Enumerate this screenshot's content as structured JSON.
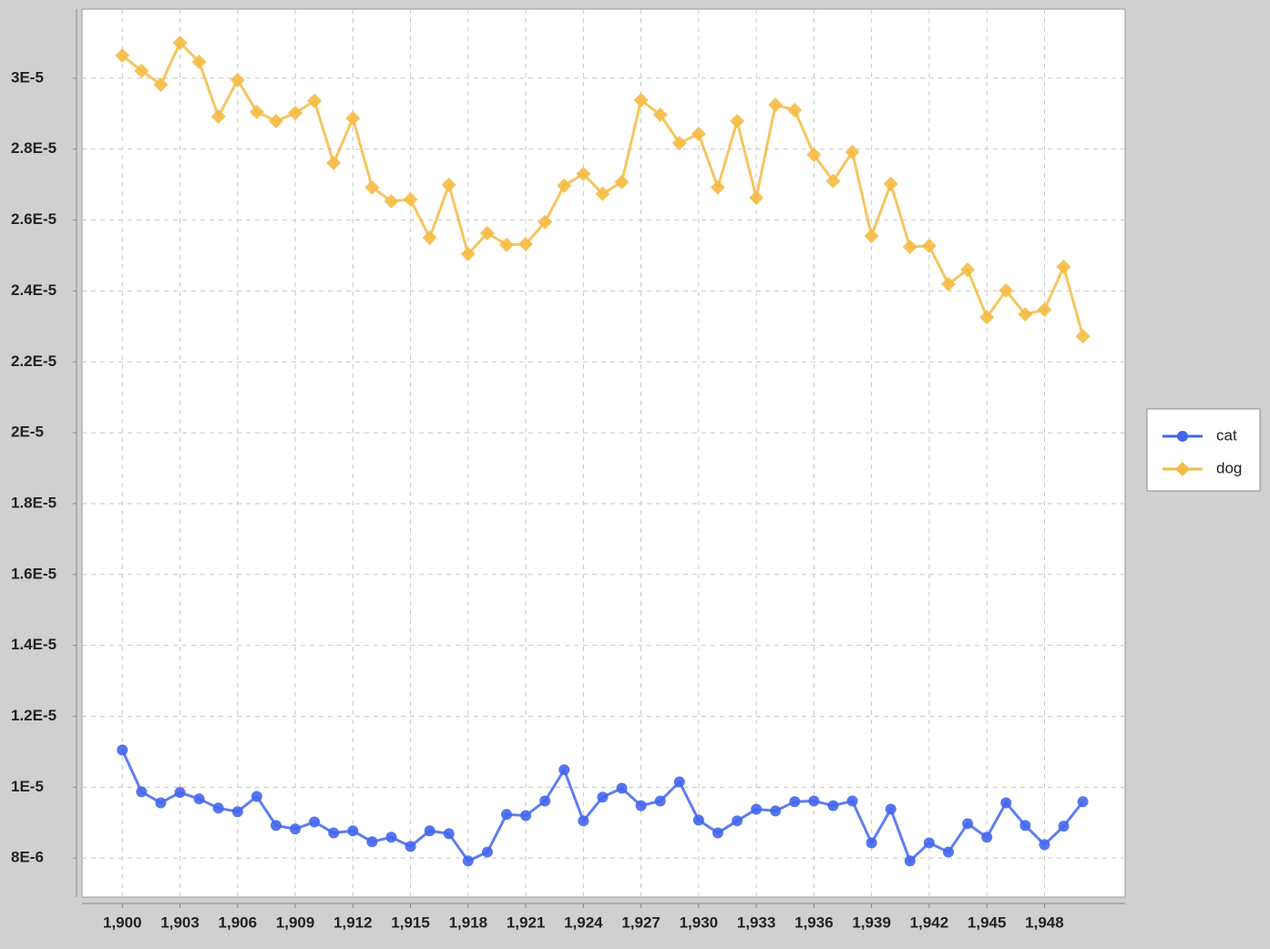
{
  "chart_data": {
    "type": "line",
    "x": [
      1900,
      1901,
      1902,
      1903,
      1904,
      1905,
      1906,
      1907,
      1908,
      1909,
      1910,
      1911,
      1912,
      1913,
      1914,
      1915,
      1916,
      1917,
      1918,
      1919,
      1920,
      1921,
      1922,
      1923,
      1924,
      1925,
      1926,
      1927,
      1928,
      1929,
      1930,
      1931,
      1932,
      1933,
      1934,
      1935,
      1936,
      1937,
      1938,
      1939,
      1940,
      1941,
      1942,
      1943,
      1944,
      1945,
      1946,
      1947,
      1948,
      1949,
      1950
    ],
    "series": [
      {
        "name": "cat",
        "color": "#4466ee",
        "marker": "circle",
        "values": [
          1.105e-05,
          9.87e-06,
          9.56e-06,
          9.85e-06,
          9.67e-06,
          9.41e-06,
          9.31e-06,
          9.74e-06,
          8.92e-06,
          8.82e-06,
          9.02e-06,
          8.71e-06,
          8.77e-06,
          8.46e-06,
          8.59e-06,
          8.33e-06,
          8.77e-06,
          8.69e-06,
          7.92e-06,
          8.17e-06,
          9.23e-06,
          9.2e-06,
          9.61e-06,
          1.049e-05,
          9.05e-06,
          9.72e-06,
          9.97e-06,
          9.48e-06,
          9.61e-06,
          1.015e-05,
          9.07e-06,
          8.71e-06,
          9.05e-06,
          9.38e-06,
          9.33e-06,
          9.59e-06,
          9.61e-06,
          9.48e-06,
          9.61e-06,
          8.43e-06,
          9.38e-06,
          7.92e-06,
          8.43e-06,
          8.17e-06,
          8.97e-06,
          8.59e-06,
          9.56e-06,
          8.92e-06,
          8.38e-06,
          8.9e-06,
          9.59e-06
        ]
      },
      {
        "name": "dog",
        "color": "#f5bb44",
        "marker": "diamond",
        "values": [
          3.064e-05,
          3.021e-05,
          2.982e-05,
          3.1e-05,
          3.046e-05,
          2.892e-05,
          2.995e-05,
          2.905e-05,
          2.879e-05,
          2.902e-05,
          2.936e-05,
          2.761e-05,
          2.887e-05,
          2.692e-05,
          2.653e-05,
          2.658e-05,
          2.55e-05,
          2.699e-05,
          2.504e-05,
          2.563e-05,
          2.53e-05,
          2.532e-05,
          2.594e-05,
          2.697e-05,
          2.73e-05,
          2.674e-05,
          2.707e-05,
          2.938e-05,
          2.897e-05,
          2.817e-05,
          2.843e-05,
          2.692e-05,
          2.879e-05,
          2.663e-05,
          2.925e-05,
          2.91e-05,
          2.784e-05,
          2.71e-05,
          2.792e-05,
          2.555e-05,
          2.702e-05,
          2.524e-05,
          2.527e-05,
          2.419e-05,
          2.46e-05,
          2.326e-05,
          2.401e-05,
          2.334e-05,
          2.347e-05,
          2.468e-05,
          2.272e-05
        ]
      }
    ],
    "xlim": [
      1897.9,
      1952.2
    ],
    "xticks": [
      {
        "value": 1900,
        "label": "1,900"
      },
      {
        "value": 1903,
        "label": "1,903"
      },
      {
        "value": 1906,
        "label": "1,906"
      },
      {
        "value": 1909,
        "label": "1,909"
      },
      {
        "value": 1912,
        "label": "1,912"
      },
      {
        "value": 1915,
        "label": "1,915"
      },
      {
        "value": 1918,
        "label": "1,918"
      },
      {
        "value": 1921,
        "label": "1,921"
      },
      {
        "value": 1924,
        "label": "1,924"
      },
      {
        "value": 1927,
        "label": "1,927"
      },
      {
        "value": 1930,
        "label": "1,930"
      },
      {
        "value": 1933,
        "label": "1,933"
      },
      {
        "value": 1936,
        "label": "1,936"
      },
      {
        "value": 1939,
        "label": "1,939"
      },
      {
        "value": 1942,
        "label": "1,942"
      },
      {
        "value": 1945,
        "label": "1,945"
      },
      {
        "value": 1948,
        "label": "1,948"
      }
    ],
    "ylim": [
      6.9e-06,
      3.195e-05
    ],
    "yticks": [
      {
        "value": 8e-06,
        "label": "8E-6"
      },
      {
        "value": 1e-05,
        "label": "1E-5"
      },
      {
        "value": 1.2e-05,
        "label": "1.2E-5"
      },
      {
        "value": 1.4e-05,
        "label": "1.4E-5"
      },
      {
        "value": 1.6e-05,
        "label": "1.6E-5"
      },
      {
        "value": 1.8e-05,
        "label": "1.8E-5"
      },
      {
        "value": 2e-05,
        "label": "2E-5"
      },
      {
        "value": 2.2e-05,
        "label": "2.2E-5"
      },
      {
        "value": 2.4e-05,
        "label": "2.4E-5"
      },
      {
        "value": 2.6e-05,
        "label": "2.6E-5"
      },
      {
        "value": 2.8e-05,
        "label": "2.8E-5"
      },
      {
        "value": 3e-05,
        "label": "3E-5"
      }
    ],
    "grid": true,
    "legend": "right"
  }
}
